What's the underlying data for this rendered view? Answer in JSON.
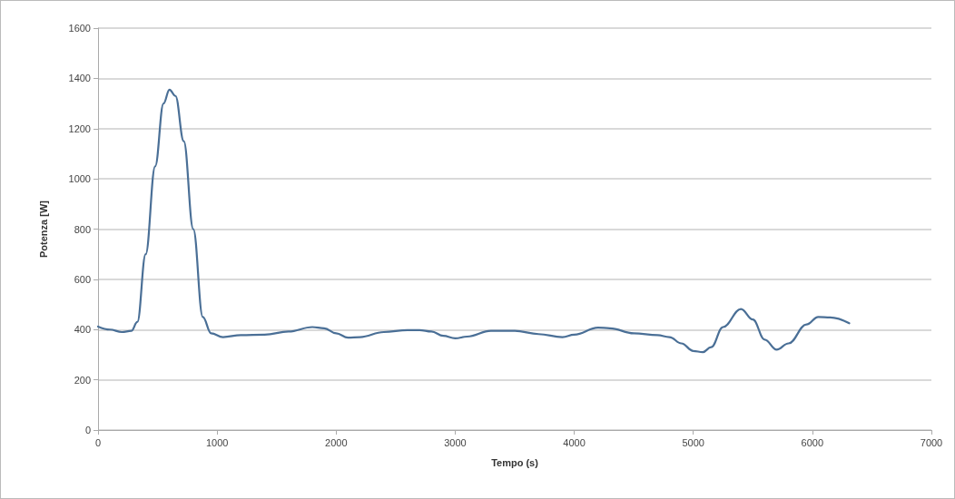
{
  "chart_data": {
    "type": "line",
    "xlabel": "Tempo (s)",
    "ylabel": "Potenza [W]",
    "x": [
      0,
      100,
      200,
      280,
      330,
      400,
      480,
      550,
      600,
      650,
      720,
      800,
      880,
      950,
      1050,
      1200,
      1400,
      1600,
      1800,
      1900,
      2000,
      2100,
      2200,
      2400,
      2600,
      2700,
      2800,
      2900,
      3000,
      3100,
      3300,
      3500,
      3700,
      3900,
      4000,
      4200,
      4300,
      4500,
      4700,
      4800,
      4900,
      5000,
      5080,
      5150,
      5250,
      5400,
      5500,
      5600,
      5700,
      5800,
      5950,
      6050,
      6150,
      6310
    ],
    "series": [
      {
        "color": "#4a6f96",
        "values": [
          412,
          400,
          390,
          395,
          430,
          700,
          1050,
          1300,
          1355,
          1330,
          1150,
          800,
          450,
          385,
          370,
          378,
          380,
          392,
          410,
          405,
          385,
          368,
          370,
          390,
          398,
          398,
          392,
          375,
          365,
          372,
          395,
          395,
          382,
          370,
          380,
          408,
          405,
          385,
          378,
          370,
          345,
          315,
          310,
          330,
          410,
          482,
          440,
          360,
          320,
          345,
          420,
          450,
          448,
          425
        ]
      }
    ],
    "xlim": [
      0,
      7000
    ],
    "xticks": [
      0,
      1000,
      2000,
      3000,
      4000,
      5000,
      6000,
      7000
    ],
    "ylim": [
      0,
      1600
    ],
    "yticks": [
      0,
      200,
      400,
      600,
      800,
      1000,
      1200,
      1400,
      1600
    ],
    "grid": "y",
    "marker": "none",
    "line_style": "solid"
  }
}
